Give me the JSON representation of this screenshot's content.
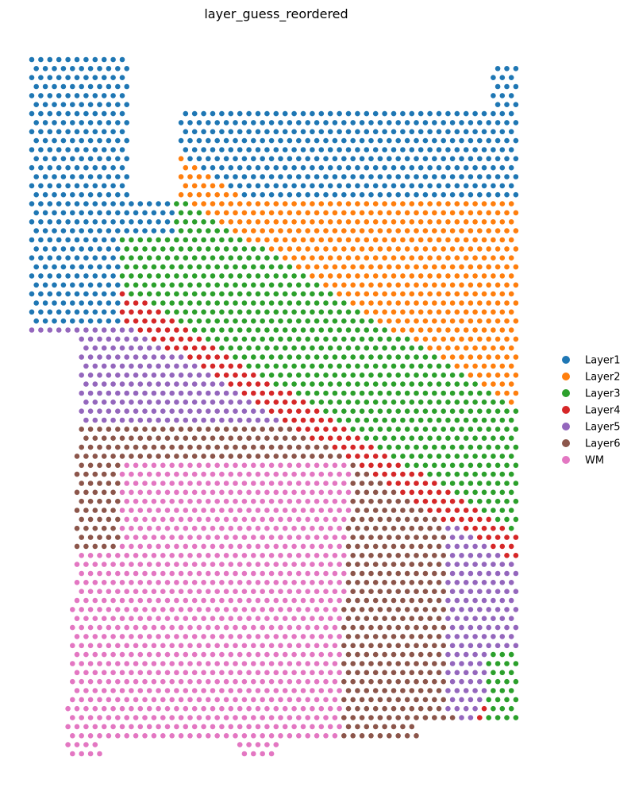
{
  "chart_data": {
    "type": "scatter",
    "title": "layer_guess_reordered",
    "xlabel": "",
    "ylabel": "",
    "grid": false,
    "axes_visible": false,
    "legend": {
      "placement": "right-outside",
      "entries": [
        {
          "name": "Layer1",
          "color": "#1f77b4"
        },
        {
          "name": "Layer2",
          "color": "#ff7f0e"
        },
        {
          "name": "Layer3",
          "color": "#2ca02c"
        },
        {
          "name": "Layer4",
          "color": "#d62728"
        },
        {
          "name": "Layer5",
          "color": "#9467bd"
        },
        {
          "name": "Layer6",
          "color": "#8c564b"
        },
        {
          "name": "WM",
          "color": "#e377c2"
        }
      ]
    },
    "region_boundaries": {
      "rows": [
        60,
        940
      ],
      "layer1_bottom": [
        [
          60,
          0
        ],
        [
          160,
          0
        ],
        [
          240,
          90
        ],
        [
          300,
          150
        ],
        [
          350,
          250
        ],
        [
          430,
          380
        ],
        [
          520,
          560
        ],
        [
          650,
          980
        ]
      ],
      "layer2_bottom": [
        [
          160,
          0
        ],
        [
          240,
          120
        ],
        [
          290,
          170
        ],
        [
          320,
          260
        ],
        [
          360,
          380
        ],
        [
          440,
          560
        ],
        [
          520,
          980
        ]
      ],
      "layer3_bottom": [
        [
          250,
          0
        ],
        [
          300,
          530
        ],
        [
          350,
          160
        ],
        [
          370,
          290
        ],
        [
          400,
          600
        ],
        [
          430,
          980
        ]
      ],
      "layer4_bottom": [
        [
          250,
          0
        ],
        [
          330,
          560
        ],
        [
          380,
          180
        ],
        [
          420,
          420
        ],
        [
          470,
          600
        ],
        [
          550,
          780
        ],
        [
          650,
          980
        ]
      ],
      "layer5_bottom_x": [
        [
          440,
          460
        ],
        [
          600,
          480
        ],
        [
          700,
          500
        ],
        [
          750,
          540
        ],
        [
          900,
          560
        ]
      ],
      "wm_right_x": [
        [
          560,
          360
        ],
        [
          640,
          420
        ],
        [
          700,
          440
        ],
        [
          900,
          430
        ]
      ]
    }
  }
}
